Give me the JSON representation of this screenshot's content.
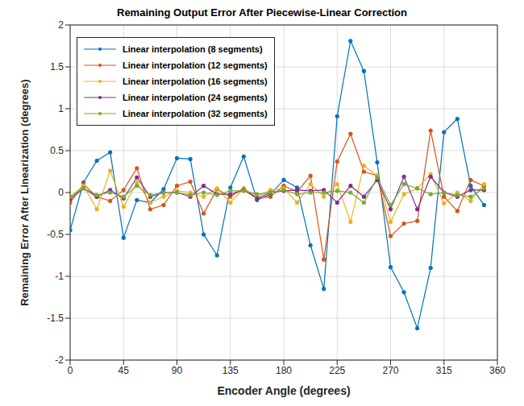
{
  "chart_data": {
    "type": "line",
    "title": "Remaining Output Error After Piecewise-Linear Correction",
    "x_label": "Encoder Angle (degrees)",
    "y_label": "Remaining Error After Linearization (degrees)",
    "x": [
      0,
      11.25,
      22.5,
      33.75,
      45,
      56.25,
      67.5,
      78.75,
      90,
      101.25,
      112.5,
      123.75,
      135,
      146.25,
      157.5,
      168.75,
      180,
      191.25,
      202.5,
      213.75,
      225,
      236.25,
      247.5,
      258.75,
      270,
      281.25,
      292.5,
      303.75,
      315,
      326.25,
      337.5,
      348.75
    ],
    "series": [
      {
        "name": "Linear interpolation (8 segments)",
        "color": "#0072bd",
        "values": [
          -0.45,
          0.12,
          0.38,
          0.48,
          -0.54,
          -0.09,
          -0.12,
          0.04,
          0.41,
          0.4,
          -0.5,
          -0.75,
          0.06,
          0.43,
          -0.09,
          -0.02,
          0.15,
          0.06,
          -0.63,
          -1.15,
          0.91,
          1.81,
          1.45,
          0.36,
          -0.89,
          -1.19,
          -1.62,
          -0.9,
          0.72,
          0.88,
          0.08,
          -0.15
        ]
      },
      {
        "name": "Linear interpolation (12 segments)",
        "color": "#d95319",
        "values": [
          -0.12,
          0.1,
          -0.05,
          -0.1,
          0.03,
          0.29,
          -0.2,
          -0.15,
          0.08,
          0.13,
          -0.25,
          0.04,
          -0.05,
          0.05,
          -0.07,
          -0.05,
          0.08,
          0.01,
          0.2,
          -0.8,
          0.37,
          0.7,
          0.25,
          0.2,
          -0.52,
          -0.37,
          -0.34,
          0.74,
          -0.05,
          -0.22,
          0.15,
          0.08
        ]
      },
      {
        "name": "Linear interpolation (16 segments)",
        "color": "#edb120",
        "values": [
          -0.05,
          0.08,
          -0.2,
          0.26,
          -0.17,
          0.12,
          -0.12,
          -0.05,
          0.02,
          0,
          -0.05,
          0.05,
          -0.12,
          0.05,
          -0.05,
          0.03,
          0.05,
          -0.12,
          0.1,
          -0.05,
          0.1,
          -0.35,
          0.32,
          0.2,
          -0.35,
          -0.02,
          0.05,
          0.22,
          -0.13,
          0,
          -0.1,
          0.1
        ]
      },
      {
        "name": "Linear interpolation (24 segments)",
        "color": "#7e2f8e",
        "values": [
          -0.08,
          0.05,
          -0.05,
          0.03,
          -0.07,
          0.18,
          -0.05,
          0,
          0,
          -0.05,
          0.08,
          -0.02,
          -0.02,
          0.03,
          -0.07,
          0,
          0.02,
          0.03,
          0.02,
          0.03,
          -0.12,
          0.08,
          -0.05,
          0.15,
          -0.2,
          0.19,
          -0.2,
          0.19,
          0,
          -0.05,
          0.03,
          0.03
        ]
      },
      {
        "name": "Linear interpolation (32 segments)",
        "color": "#77ac30",
        "values": [
          -0.05,
          0.05,
          -0.03,
          0,
          -0.05,
          0.08,
          -0.03,
          0,
          0,
          -0.03,
          0,
          -0.03,
          0.02,
          0.02,
          -0.02,
          0,
          0.03,
          -0.02,
          0,
          0,
          0.02,
          0,
          -0.12,
          0.18,
          -0.15,
          0.1,
          0.05,
          -0.02,
          0,
          -0.03,
          -0.05,
          0.05
        ]
      }
    ],
    "xlim": [
      0,
      360
    ],
    "xticks": [
      0,
      45,
      90,
      135,
      180,
      225,
      270,
      315,
      360
    ],
    "ylim": [
      -2,
      2
    ],
    "yticks": [
      -2,
      -1.5,
      -1,
      -0.5,
      0,
      0.5,
      1,
      1.5,
      2
    ],
    "grid": true,
    "legend": "upper left",
    "marker": "dot"
  }
}
